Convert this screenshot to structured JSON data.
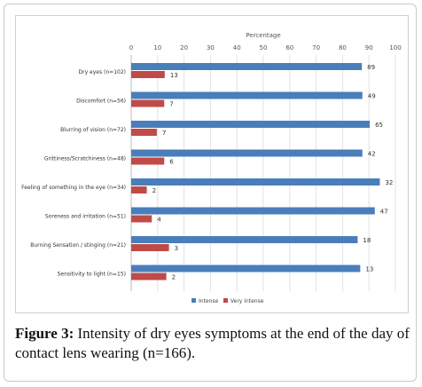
{
  "chart_data": {
    "type": "bar",
    "orientation": "horizontal",
    "xlabel": "Percentage",
    "xlim": [
      0,
      100
    ],
    "xticks": [
      0,
      10,
      20,
      30,
      40,
      50,
      60,
      70,
      80,
      90,
      100
    ],
    "grid": true,
    "legend_position": "bottom",
    "categories": [
      "Dry eyes (n=102)",
      "Discomfort (n=56)",
      "Blurring of vision (n=72)",
      "Grittiness/Scratchiness (n=48)",
      "Feeling of something in the eye (n=34)",
      "Soreness and irritation (n=51)",
      "Burning Sensation / stinging (n=21)",
      "Sensitivity to light (n=15)"
    ],
    "series": [
      {
        "name": "Intense",
        "color": "#4a7ebb",
        "values": [
          87.3,
          87.5,
          90.3,
          87.5,
          94.1,
          92.2,
          85.7,
          86.7
        ],
        "labels": [
          "89",
          "49",
          "65",
          "42",
          "32",
          "47",
          "18",
          "13"
        ]
      },
      {
        "name": "Very intense",
        "color": "#be4b48",
        "values": [
          12.7,
          12.5,
          9.7,
          12.5,
          5.9,
          7.8,
          14.3,
          13.3
        ],
        "labels": [
          "13",
          "7",
          "7",
          "6",
          "2",
          "4",
          "3",
          "2"
        ]
      }
    ]
  },
  "caption": {
    "label": "Figure 3:",
    "text": " Intensity of dry eyes symptoms at the end of the day of contact lens wearing (n=166)."
  }
}
